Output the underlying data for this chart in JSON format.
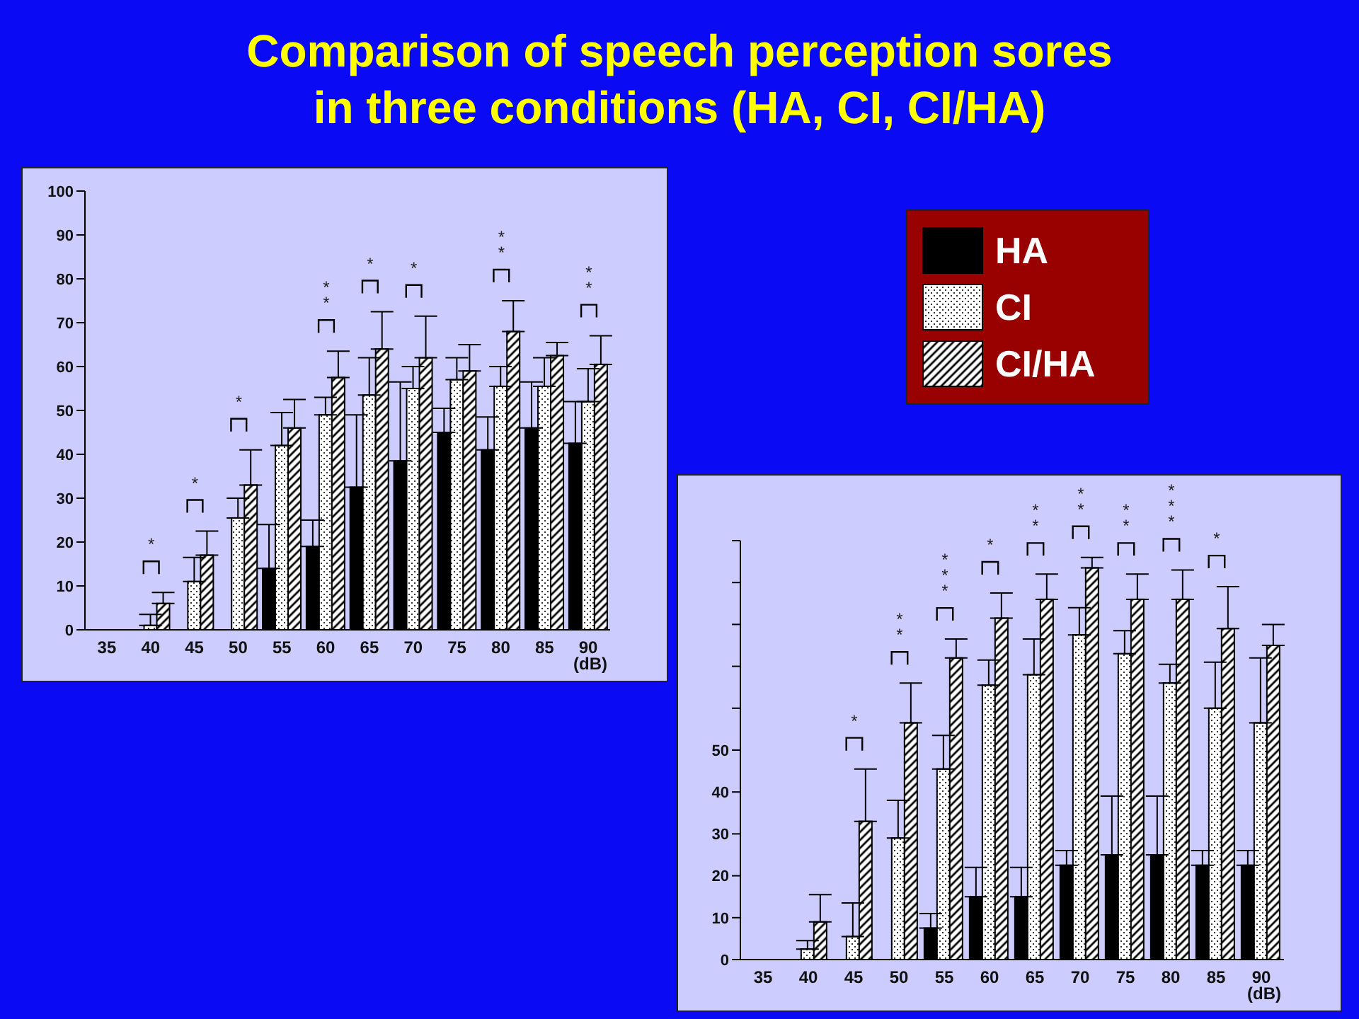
{
  "chart_data": [
    {
      "type": "bar",
      "title": "Comparison of speech perception sores\nin three conditions (HA, CI, CI/HA)",
      "xlabel": "(dB)",
      "categories": [
        "35",
        "40",
        "45",
        "50",
        "55",
        "60",
        "65",
        "70",
        "75",
        "80",
        "85",
        "90"
      ],
      "series": [
        {
          "name": "HA",
          "color": "#000000",
          "values": [
            null,
            null,
            null,
            null,
            14,
            19,
            32.5,
            38.5,
            45,
            41,
            46,
            42.5
          ],
          "errors": [
            null,
            null,
            null,
            null,
            [
              14,
              24
            ],
            [
              19,
              25
            ],
            [
              32.5,
              49
            ],
            [
              38.5,
              56.5
            ],
            [
              45,
              50.5
            ],
            [
              41,
              48.5
            ],
            [
              46,
              56.5
            ],
            [
              42.5,
              52
            ]
          ]
        },
        {
          "name": "CI",
          "color": "#ffffff",
          "values": [
            null,
            1,
            11,
            25.5,
            42,
            49,
            53.5,
            55,
            57,
            55.5,
            55.5,
            52
          ],
          "errors": [
            null,
            [
              1,
              3.5
            ],
            [
              11,
              16.5
            ],
            [
              25.5,
              30
            ],
            [
              42,
              49.5
            ],
            [
              49,
              53
            ],
            [
              53.5,
              62
            ],
            [
              55,
              60
            ],
            [
              57,
              62
            ],
            [
              55.5,
              60
            ],
            [
              55.5,
              62
            ],
            [
              52,
              59.5
            ]
          ]
        },
        {
          "name": "CI/HA",
          "color": "#ffffff",
          "values": [
            null,
            6,
            17,
            33,
            46,
            57.5,
            64,
            62,
            59,
            68,
            62.5,
            60.5
          ],
          "errors": [
            null,
            [
              6,
              8.5
            ],
            [
              17,
              22.5
            ],
            [
              33,
              41
            ],
            [
              46,
              52.5
            ],
            [
              57.5,
              63.5
            ],
            [
              64,
              72.5
            ],
            [
              62,
              71.5
            ],
            [
              59,
              65
            ],
            [
              68,
              75
            ],
            [
              62.5,
              65.5
            ],
            [
              60.5,
              67
            ]
          ]
        }
      ],
      "ylim": [
        0,
        100
      ],
      "yticks": [
        0,
        10,
        20,
        30,
        40,
        50,
        60,
        70,
        80,
        90,
        100
      ],
      "legend": "top right",
      "annotations": [
        "*",
        "*",
        "*",
        "**",
        "*",
        "*",
        "**",
        "**"
      ]
    },
    {
      "type": "bar",
      "xlabel": "(dB)",
      "categories": [
        "35",
        "40",
        "45",
        "50",
        "55",
        "60",
        "65",
        "70",
        "75",
        "80",
        "85",
        "90"
      ],
      "series": [
        {
          "color": "#000000",
          "values": [
            null,
            null,
            null,
            null,
            7.5,
            15,
            15,
            22.5,
            25,
            25,
            22.5,
            22.5
          ],
          "errors": [
            null,
            null,
            null,
            null,
            [
              7.5,
              11
            ],
            [
              15,
              22
            ],
            [
              15,
              22
            ],
            [
              22.5,
              26
            ],
            [
              25,
              39
            ],
            [
              25,
              39
            ],
            [
              22.5,
              26
            ],
            [
              22.5,
              26
            ]
          ]
        },
        {
          "color": "#ffffff",
          "values": [
            null,
            2.5,
            5.5,
            29,
            45.5,
            65.5,
            68,
            77.5,
            73,
            66,
            60,
            56.5
          ],
          "errors": [
            null,
            [
              2.5,
              4.5
            ],
            [
              5.5,
              13.5
            ],
            [
              29,
              38
            ],
            [
              45.5,
              53.5
            ],
            [
              65.5,
              71.5
            ],
            [
              68,
              76.5
            ],
            [
              77.5,
              84
            ],
            [
              73,
              78.5
            ],
            [
              66,
              70.5
            ],
            [
              60,
              71
            ],
            [
              56.5,
              72
            ]
          ]
        },
        {
          "color": "#ffffff",
          "values": [
            null,
            9,
            33,
            56.5,
            72,
            81.5,
            86,
            93.5,
            86,
            86,
            79,
            75
          ],
          "errors": [
            null,
            [
              9,
              15.5
            ],
            [
              33,
              45.5
            ],
            [
              56.5,
              66
            ],
            [
              72,
              76.5
            ],
            [
              81.5,
              87.5
            ],
            [
              86,
              92
            ],
            [
              93.5,
              96
            ],
            [
              86,
              92
            ],
            [
              86,
              93
            ],
            [
              79,
              89
            ],
            [
              75,
              80
            ]
          ]
        }
      ],
      "ylim": [
        0,
        100
      ],
      "yticks": [
        0,
        10,
        20,
        30,
        40,
        50,
        {
          "value": 60,
          "label": null
        },
        {
          "value": 70,
          "label": null
        },
        {
          "value": 80,
          "label": null
        },
        {
          "value": 90,
          "label": null
        },
        {
          "value": 100,
          "label": null
        }
      ],
      "annotations": [
        "*",
        "**",
        "***",
        "*",
        "**",
        "**",
        "**",
        "***",
        "*"
      ]
    }
  ]
}
